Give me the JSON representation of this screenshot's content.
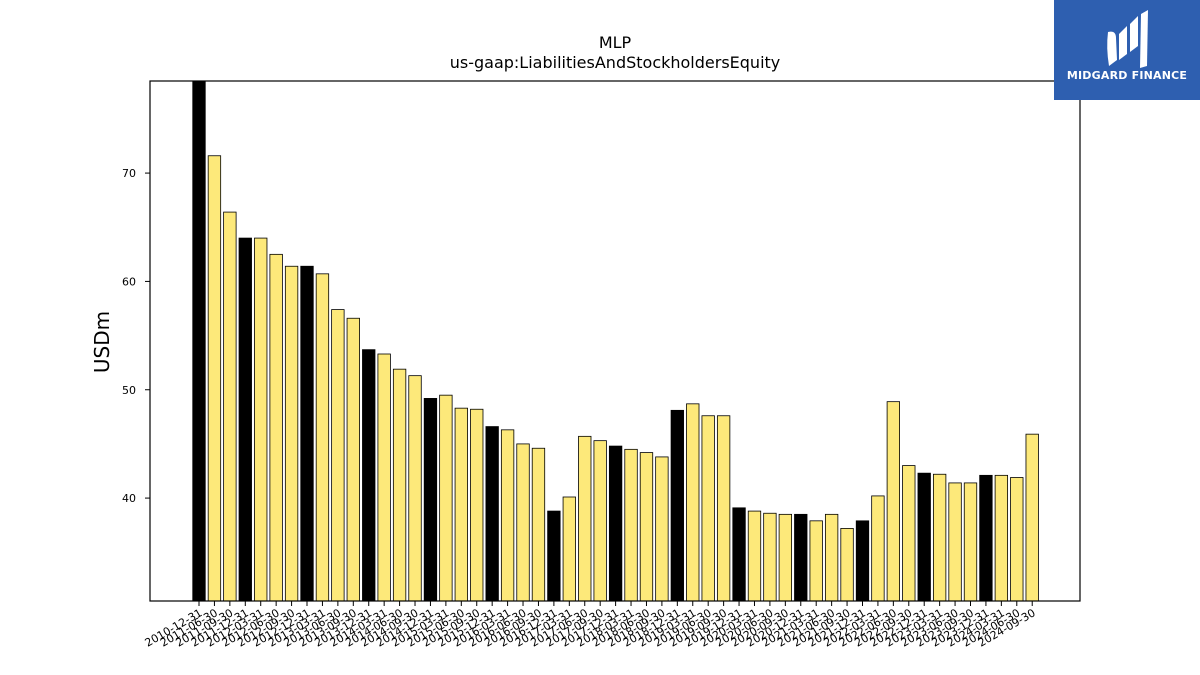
{
  "logo": {
    "text": "MIDGARD FINANCE",
    "background": "#2e5fb0"
  },
  "chart_data": {
    "type": "bar",
    "title": "MLP",
    "subtitle": "us-gaap:LiabilitiesAndStockholdersEquity",
    "xlabel": "",
    "ylabel": "USDm",
    "ylim": [
      30.5,
      78.5
    ],
    "yticks": [
      40,
      50,
      60,
      70
    ],
    "grid": false,
    "colors": {
      "year_end": "#000000",
      "quarter": "#fde97a",
      "edge": "#000000"
    },
    "categories": [
      "2010-12-31",
      "2011-06-30",
      "2011-09-30",
      "2011-12-31",
      "2012-03-31",
      "2012-06-30",
      "2012-09-30",
      "2012-12-31",
      "2013-03-31",
      "2013-06-30",
      "2013-09-30",
      "2013-12-31",
      "2014-03-31",
      "2014-06-30",
      "2014-09-30",
      "2014-12-31",
      "2015-03-31",
      "2015-06-30",
      "2015-09-30",
      "2015-12-31",
      "2016-03-31",
      "2016-06-30",
      "2016-09-30",
      "2016-12-31",
      "2017-03-31",
      "2017-06-30",
      "2017-09-30",
      "2017-12-31",
      "2018-03-31",
      "2018-06-30",
      "2018-09-30",
      "2018-12-31",
      "2019-03-31",
      "2019-06-30",
      "2019-09-30",
      "2019-12-31",
      "2020-03-31",
      "2020-06-30",
      "2020-09-30",
      "2020-12-31",
      "2021-03-31",
      "2021-06-30",
      "2021-09-30",
      "2021-12-31",
      "2022-03-31",
      "2022-06-30",
      "2022-09-30",
      "2022-12-31",
      "2023-03-31",
      "2023-06-30",
      "2023-09-30",
      "2023-12-31",
      "2024-03-31",
      "2024-06-30",
      "2024-09-30"
    ],
    "values": [
      78.8,
      71.6,
      66.4,
      64.0,
      64.0,
      62.5,
      61.4,
      61.4,
      60.7,
      57.4,
      56.6,
      53.7,
      53.3,
      51.9,
      51.3,
      49.2,
      49.5,
      48.3,
      48.2,
      46.6,
      46.3,
      45.0,
      44.6,
      38.8,
      40.1,
      45.7,
      45.3,
      44.8,
      44.5,
      44.2,
      43.8,
      48.1,
      48.7,
      47.6,
      47.6,
      39.1,
      38.8,
      38.6,
      38.5,
      38.5,
      37.9,
      38.5,
      37.2,
      37.9,
      40.2,
      48.9,
      43.0,
      42.3,
      42.2,
      41.4,
      41.4,
      42.1,
      42.1,
      41.9,
      45.9
    ],
    "year_end_flags": [
      1,
      0,
      0,
      1,
      0,
      0,
      0,
      1,
      0,
      0,
      0,
      1,
      0,
      0,
      0,
      1,
      0,
      0,
      0,
      1,
      0,
      0,
      0,
      1,
      0,
      0,
      0,
      1,
      0,
      0,
      0,
      1,
      0,
      0,
      0,
      1,
      0,
      0,
      0,
      1,
      0,
      0,
      0,
      1,
      0,
      0,
      0,
      1,
      0,
      0,
      0,
      1,
      0,
      0,
      0
    ]
  }
}
